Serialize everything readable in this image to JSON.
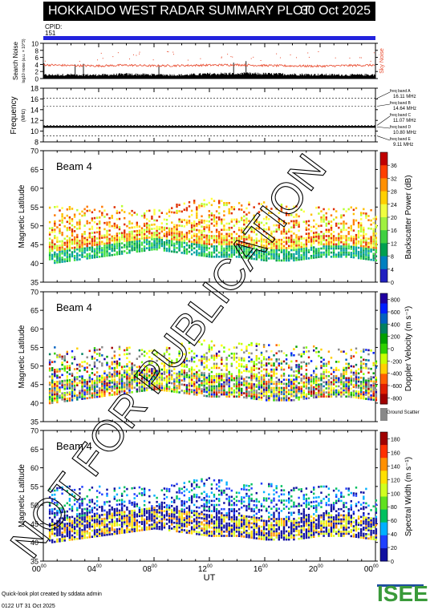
{
  "header": {
    "title": "HOKKAIDO WEST RADAR SUMMARY PLOT",
    "date": "30 Oct 2025",
    "cpid_label": "CPID:",
    "cpid_value": "151"
  },
  "footer": {
    "created_by": "Quick-look plot created by sddata admin",
    "created_at": "0122 UT 31 Oct 2025",
    "logo_text": "ISEE"
  },
  "watermark": "NOT FOR PUBLICATION",
  "colors": {
    "cpid_bar": "#2222dd",
    "noise_line": "#e8472a",
    "sky_noise_label": "#e8472a",
    "ground_scatter": "#888888",
    "logo_green": "#3a9a3a",
    "logo_blue": "#1f4fa0"
  },
  "chart_data": [
    {
      "type": "line",
      "panel": "noise",
      "ylabel": "Search Noise",
      "ylabel_sub": "log10 noise (a.u. × 10^3)",
      "side_label": "Sky Noise",
      "ylim": [
        0,
        10
      ],
      "yticks": [
        0,
        2,
        4,
        6,
        8,
        10
      ],
      "x": [
        0,
        2,
        4,
        6,
        8,
        10,
        12,
        14,
        16,
        18,
        20,
        22,
        24
      ],
      "series": [
        {
          "name": "Sky Noise",
          "values": [
            3.9,
            3.7,
            3.6,
            3.8,
            3.6,
            3.7,
            3.8,
            3.9,
            3.7,
            3.6,
            3.5,
            3.7,
            3.8
          ]
        },
        {
          "name": "Search Noise",
          "values": [
            1.0,
            1.1,
            1.0,
            1.2,
            1.1,
            1.0,
            1.3,
            1.4,
            1.3,
            1.2,
            1.1,
            1.0,
            1.1
          ]
        }
      ]
    },
    {
      "type": "line",
      "panel": "frequency",
      "ylabel": "Frequency",
      "unit": "(MHz)",
      "ylim": [
        8,
        18
      ],
      "yticks": [
        8,
        10,
        12,
        14,
        16,
        18
      ],
      "bands": [
        {
          "label": "freq band A",
          "value_label": "16.11 MHz",
          "freq": 16.11
        },
        {
          "label": "freq band B",
          "value_label": "14.64 MHz",
          "freq": 14.64
        },
        {
          "label": "freq band C",
          "value_label": "11.07 MHz",
          "freq": 11.07
        },
        {
          "label": "freq band D",
          "value_label": "10.80 MHz",
          "freq": 10.8
        },
        {
          "label": "freq band E",
          "value_label": "9.11 MHz",
          "freq": 9.11
        }
      ],
      "active_freq": 10.8
    },
    {
      "type": "heatmap",
      "panel": "power",
      "beam_label": "Beam  4",
      "ylabel": "Magnetic Latitude",
      "ylim": [
        35,
        70
      ],
      "yticks": [
        35,
        40,
        45,
        50,
        55,
        60,
        65,
        70
      ],
      "colorbar_label": "Backscatter Power (dB)",
      "colorbar_ticks": [
        0,
        4,
        8,
        12,
        16,
        20,
        24,
        28,
        32,
        36
      ],
      "colorbar_range": [
        0,
        40
      ],
      "scatter_band": {
        "lower": [
          41,
          42,
          43,
          44,
          45,
          44,
          43,
          43,
          42,
          42,
          43,
          43,
          42
        ],
        "upper": [
          55,
          55,
          55,
          55,
          54,
          56,
          57,
          56,
          56,
          55,
          55,
          55,
          54
        ]
      }
    },
    {
      "type": "heatmap",
      "panel": "velocity",
      "beam_label": "Beam  4",
      "ylabel": "Magnetic Latitude",
      "ylim": [
        35,
        70
      ],
      "yticks": [
        35,
        40,
        45,
        50,
        55,
        60,
        65,
        70
      ],
      "colorbar_label": "Doppler Velocity (m s⁻¹)",
      "colorbar_ticks": [
        800,
        600,
        400,
        200,
        0,
        -200,
        -400,
        -600,
        -800
      ],
      "colorbar_range": [
        -900,
        900
      ],
      "ground_scatter_label": "Ground Scatter"
    },
    {
      "type": "heatmap",
      "panel": "width",
      "beam_label": "Beam  4",
      "ylabel": "Magnetic Latitude",
      "ylim": [
        35,
        70
      ],
      "yticks": [
        35,
        40,
        45,
        50,
        55,
        60,
        65,
        70
      ],
      "colorbar_label": "Spectral Width (m s⁻¹)",
      "colorbar_ticks": [
        0,
        20,
        40,
        60,
        80,
        100,
        120,
        140,
        160,
        180
      ],
      "colorbar_range": [
        0,
        190
      ]
    }
  ],
  "x_axis": {
    "label": "UT",
    "ticks": [
      {
        "hh": "00",
        "mm": "00"
      },
      {
        "hh": "04",
        "mm": "00"
      },
      {
        "hh": "08",
        "mm": "00"
      },
      {
        "hh": "12",
        "mm": "00"
      },
      {
        "hh": "16",
        "mm": "00"
      },
      {
        "hh": "20",
        "mm": "00"
      },
      {
        "hh": "00",
        "mm": "00"
      }
    ],
    "range_hours": [
      0,
      24
    ]
  }
}
